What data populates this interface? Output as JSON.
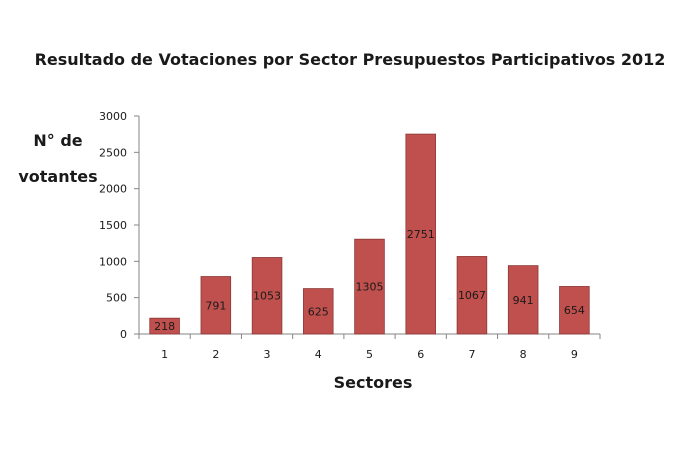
{
  "chart_data": {
    "type": "bar",
    "title": "Resultado de Votaciones por Sector Presupuestos Participativos 2012",
    "ylabel_lines": [
      "N° de",
      "votantes"
    ],
    "xlabel": "Sectores",
    "categories": [
      "1",
      "2",
      "3",
      "4",
      "5",
      "6",
      "7",
      "8",
      "9"
    ],
    "values": [
      218,
      791,
      1053,
      625,
      1305,
      2751,
      1067,
      941,
      654
    ],
    "data_labels": [
      "218",
      "791",
      "1053",
      "625",
      "1305",
      "2751",
      "1067",
      "941",
      "654"
    ],
    "ylim": [
      0,
      3000
    ],
    "yticks": [
      "0",
      "500",
      "1000",
      "1500",
      "2000",
      "2500",
      "3000"
    ],
    "ytick_values": [
      0,
      500,
      1000,
      1500,
      2000,
      2500,
      3000
    ],
    "grid": false,
    "legend": "none",
    "bar_color": "#c0504d",
    "bar_border_color": "#8c3836"
  }
}
